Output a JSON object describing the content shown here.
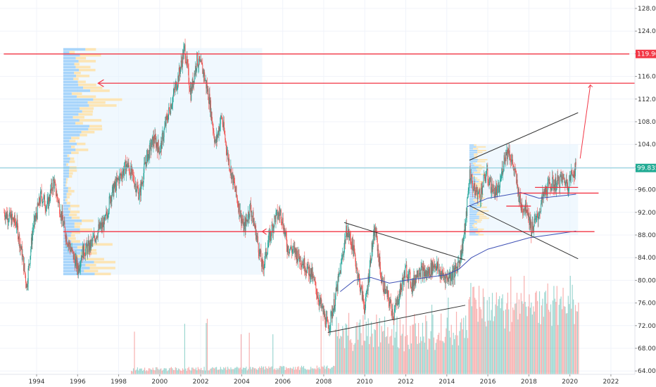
{
  "chart_data": {
    "type": "candlestick",
    "title": "",
    "xlabel": "",
    "ylabel": "",
    "x_range": [
      1992.4,
      2023.3
    ],
    "ylim": [
      62.0,
      130.0
    ],
    "x_ticks": [
      "1994",
      "1996",
      "1998",
      "2000",
      "2002",
      "2004",
      "2006",
      "2008",
      "2010",
      "2012",
      "2014",
      "2016",
      "2018",
      "2020",
      "2022"
    ],
    "y_ticks": [
      "64.000",
      "68.000",
      "72.000",
      "76.000",
      "80.000",
      "84.000",
      "88.000",
      "92.000",
      "96.000",
      "100.000",
      "104.000",
      "108.000",
      "112.000",
      "116.000",
      "120.000",
      "124.000",
      "128.000"
    ],
    "grid": true,
    "price_labels": [
      {
        "value": 119.965,
        "text": "119.965",
        "color": "#f23645"
      },
      {
        "value": 99.835,
        "text": "99.835",
        "color": "#22ab94"
      }
    ],
    "up_color": "#26a69a",
    "down_color": "#ef5350",
    "series_path": [
      [
        1992.4,
        92.0
      ],
      [
        1993.0,
        90.0
      ],
      [
        1993.3,
        84.0
      ],
      [
        1993.5,
        79.0
      ],
      [
        1993.8,
        89.0
      ],
      [
        1994.2,
        95.0
      ],
      [
        1994.5,
        93.0
      ],
      [
        1994.8,
        97.5
      ],
      [
        1995.1,
        93.0
      ],
      [
        1995.4,
        88.0
      ],
      [
        1995.7,
        85.0
      ],
      [
        1996.0,
        82.0
      ],
      [
        1996.2,
        85.0
      ],
      [
        1996.6,
        86.0
      ],
      [
        1997.0,
        89.0
      ],
      [
        1997.3,
        90.0
      ],
      [
        1997.6,
        95.0
      ],
      [
        1998.0,
        98.0
      ],
      [
        1998.4,
        100.5
      ],
      [
        1998.7,
        98.0
      ],
      [
        1999.0,
        95.0
      ],
      [
        1999.3,
        101.0
      ],
      [
        1999.7,
        105.0
      ],
      [
        2000.0,
        103.0
      ],
      [
        2000.3,
        108.0
      ],
      [
        2000.6,
        112.0
      ],
      [
        2000.9,
        116.0
      ],
      [
        2001.2,
        121.0
      ],
      [
        2001.5,
        113.0
      ],
      [
        2001.8,
        119.0
      ],
      [
        2002.1,
        117.0
      ],
      [
        2002.4,
        112.0
      ],
      [
        2002.7,
        104.0
      ],
      [
        2003.0,
        109.0
      ],
      [
        2003.3,
        102.0
      ],
      [
        2003.6,
        97.0
      ],
      [
        2003.9,
        92.0
      ],
      [
        2004.1,
        89.0
      ],
      [
        2004.4,
        93.0
      ],
      [
        2004.7,
        88.0
      ],
      [
        2005.0,
        82.0
      ],
      [
        2005.3,
        87.0
      ],
      [
        2005.6,
        91.0
      ],
      [
        2005.9,
        92.0
      ],
      [
        2006.2,
        86.0
      ],
      [
        2006.6,
        85.0
      ],
      [
        2007.0,
        83.0
      ],
      [
        2007.4,
        81.0
      ],
      [
        2007.8,
        76.0
      ],
      [
        2008.2,
        71.5
      ],
      [
        2008.5,
        76.0
      ],
      [
        2008.8,
        82.0
      ],
      [
        2009.1,
        89.0
      ],
      [
        2009.4,
        86.0
      ],
      [
        2009.7,
        80.0
      ],
      [
        2010.0,
        75.0
      ],
      [
        2010.3,
        85.0
      ],
      [
        2010.5,
        89.0
      ],
      [
        2010.8,
        80.0
      ],
      [
        2011.1,
        77.0
      ],
      [
        2011.4,
        74.0
      ],
      [
        2011.7,
        78.0
      ],
      [
        2012.0,
        82.0
      ],
      [
        2012.3,
        79.0
      ],
      [
        2012.6,
        82.0
      ],
      [
        2013.0,
        81.0
      ],
      [
        2013.4,
        83.0
      ],
      [
        2013.7,
        81.0
      ],
      [
        2014.0,
        80.5
      ],
      [
        2014.4,
        81.5
      ],
      [
        2014.7,
        85.0
      ],
      [
        2014.9,
        90.0
      ],
      [
        2015.1,
        99.0
      ],
      [
        2015.3,
        96.0
      ],
      [
        2015.6,
        95.0
      ],
      [
        2015.9,
        99.0
      ],
      [
        2016.2,
        96.0
      ],
      [
        2016.5,
        95.5
      ],
      [
        2016.8,
        102.0
      ],
      [
        2017.0,
        103.0
      ],
      [
        2017.3,
        99.0
      ],
      [
        2017.6,
        93.0
      ],
      [
        2017.9,
        93.0
      ],
      [
        2018.1,
        89.0
      ],
      [
        2018.4,
        91.0
      ],
      [
        2018.7,
        95.0
      ],
      [
        2019.0,
        97.0
      ],
      [
        2019.3,
        97.0
      ],
      [
        2019.6,
        98.0
      ],
      [
        2019.9,
        97.0
      ],
      [
        2020.1,
        99.0
      ],
      [
        2020.3,
        99.8
      ]
    ],
    "moving_average": [
      [
        2008.8,
        78.0
      ],
      [
        2009.5,
        80.0
      ],
      [
        2010.3,
        80.5
      ],
      [
        2011.2,
        79.5
      ],
      [
        2012.0,
        80.0
      ],
      [
        2013.0,
        80.5
      ],
      [
        2014.0,
        81.0
      ],
      [
        2014.6,
        82.0
      ],
      [
        2015.2,
        84.0
      ],
      [
        2016.0,
        85.5
      ],
      [
        2017.0,
        86.5
      ],
      [
        2018.0,
        87.5
      ],
      [
        2019.0,
        88.0
      ],
      [
        2020.3,
        88.7
      ]
    ],
    "moving_average_2": [
      [
        2015.0,
        93.0
      ],
      [
        2016.0,
        94.5
      ],
      [
        2016.8,
        95.0
      ],
      [
        2017.6,
        95.5
      ],
      [
        2018.5,
        94.5
      ],
      [
        2019.3,
        94.8
      ],
      [
        2020.3,
        95.2
      ]
    ],
    "trendlines": [
      {
        "x1": 2008.2,
        "y1": 70.8,
        "x2": 2014.9,
        "y2": 75.6,
        "color": "#333333"
      },
      {
        "x1": 2009.0,
        "y1": 90.2,
        "x2": 2014.9,
        "y2": 83.6,
        "color": "#333333"
      },
      {
        "x1": 2015.1,
        "y1": 101.2,
        "x2": 2020.4,
        "y2": 109.6,
        "color": "#333333"
      },
      {
        "x1": 2015.1,
        "y1": 93.2,
        "x2": 2020.4,
        "y2": 83.8,
        "color": "#333333"
      }
    ],
    "horizontal_lines": [
      {
        "value": 119.965,
        "x_start": 1992.4,
        "x_end": 2022.9,
        "color": "#f23645"
      },
      {
        "value": 114.8,
        "x_start": 1997.0,
        "x_end": 2023.3,
        "color": "#f23645",
        "arrow_left": true
      },
      {
        "value": 88.6,
        "x_start": 1995.3,
        "x_end": 2021.2,
        "color": "#f23645",
        "arrow_mid": 2005.0
      },
      {
        "value": 95.4,
        "x_start": 2017.5,
        "x_end": 2021.4,
        "color": "#f23645"
      },
      {
        "value": 93.1,
        "x_start": 2016.9,
        "x_end": 2018.1,
        "color": "#f23645"
      },
      {
        "value": 96.4,
        "x_start": 2018.3,
        "x_end": 2020.4,
        "color": "#f23645"
      }
    ],
    "projection": {
      "x1": 2020.5,
      "y1": 101.5,
      "x2": 2021.0,
      "y2": 114.5,
      "color": "#f23645"
    },
    "price_line": {
      "value": 99.835,
      "color": "#7ec8d8"
    },
    "volume_profiles": [
      {
        "x_start": 1995.3,
        "x_end": 2005.0,
        "y_top": 121.0,
        "y_bottom": 81.0,
        "max_width_years": 2.9
      },
      {
        "x_start": 2015.1,
        "x_end": 2020.4,
        "y_top": 104.0,
        "y_bottom": 88.0,
        "max_width_years": 1.0
      }
    ],
    "volume": {
      "start_year": 1998.6,
      "end_year": 2020.4,
      "max_height": 0.23
    }
  }
}
